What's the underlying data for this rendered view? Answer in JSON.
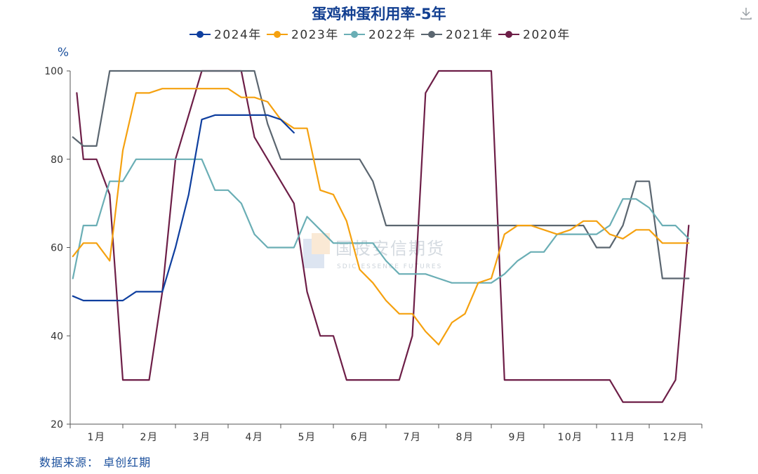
{
  "chart_data": {
    "type": "line",
    "title": "蛋鸡种蛋利用率-5年",
    "ylabel": "%",
    "ylim": [
      20,
      100
    ],
    "yticks": [
      20,
      40,
      60,
      80,
      100
    ],
    "xlim": [
      0,
      48
    ],
    "months": [
      "1月",
      "2月",
      "3月",
      "4月",
      "5月",
      "6月",
      "7月",
      "8月",
      "9月",
      "10月",
      "11月",
      "12月"
    ],
    "legend_position": "top-center",
    "grid": false,
    "watermark": {
      "cn": "国投安信期货",
      "en": "SDIC ESSENCE FUTURES"
    },
    "series": [
      {
        "name": "2024年",
        "color": "#0f3f9f",
        "x": [
          0.2,
          1,
          2,
          3,
          4,
          5,
          6,
          7,
          8,
          9,
          10,
          11,
          12,
          13,
          14,
          15,
          16,
          17
        ],
        "y": [
          49,
          48,
          48,
          48,
          48,
          50,
          50,
          50,
          60,
          72,
          89,
          90,
          90,
          90,
          90,
          90,
          89,
          86
        ]
      },
      {
        "name": "2023年",
        "color": "#f5a10f",
        "x": [
          0.2,
          1,
          2,
          3,
          4,
          5,
          6,
          7,
          8,
          9,
          10,
          11,
          12,
          13,
          14,
          15,
          16,
          17,
          18,
          19,
          20,
          21,
          22,
          23,
          24,
          25,
          26,
          27,
          28,
          29,
          30,
          31,
          32,
          33,
          34,
          35,
          36,
          37,
          38,
          39,
          40,
          41,
          42,
          43,
          44,
          45,
          46,
          47
        ],
        "y": [
          58,
          61,
          61,
          57,
          82,
          95,
          95,
          96,
          96,
          96,
          96,
          96,
          96,
          94,
          94,
          93,
          89,
          87,
          87,
          73,
          72,
          66,
          55,
          52,
          48,
          45,
          45,
          41,
          38,
          43,
          45,
          52,
          53,
          63,
          65,
          65,
          64,
          63,
          64,
          66,
          66,
          63,
          62,
          64,
          64,
          61,
          61,
          61
        ]
      },
      {
        "name": "2022年",
        "color": "#6aaeb5",
        "x": [
          0.2,
          1,
          2,
          3,
          4,
          5,
          6,
          7,
          8,
          9,
          10,
          11,
          12,
          13,
          14,
          15,
          16,
          17,
          18,
          19,
          20,
          21,
          22,
          23,
          24,
          25,
          26,
          27,
          28,
          29,
          30,
          31,
          32,
          33,
          34,
          35,
          36,
          37,
          38,
          39,
          40,
          41,
          42,
          43,
          44,
          45,
          46,
          47
        ],
        "y": [
          53,
          65,
          65,
          75,
          75,
          80,
          80,
          80,
          80,
          80,
          80,
          73,
          73,
          70,
          63,
          60,
          60,
          60,
          67,
          64,
          61,
          61,
          61,
          61,
          57,
          54,
          54,
          54,
          53,
          52,
          52,
          52,
          52,
          54,
          57,
          59,
          59,
          63,
          63,
          63,
          63,
          65,
          71,
          71,
          69,
          65,
          65,
          62
        ]
      },
      {
        "name": "2021年",
        "color": "#5b6670",
        "x": [
          0.2,
          1,
          2,
          3,
          4,
          5,
          6,
          7,
          8,
          9,
          10,
          11,
          12,
          13,
          14,
          15,
          16,
          17,
          18,
          19,
          20,
          21,
          22,
          23,
          24,
          25,
          26,
          27,
          28,
          29,
          30,
          31,
          32,
          33,
          34,
          35,
          36,
          37,
          38,
          39,
          40,
          41,
          42,
          43,
          44,
          45,
          46,
          47
        ],
        "y": [
          85,
          83,
          83,
          100,
          100,
          100,
          100,
          100,
          100,
          100,
          100,
          100,
          100,
          100,
          100,
          88,
          80,
          80,
          80,
          80,
          80,
          80,
          80,
          75,
          65,
          65,
          65,
          65,
          65,
          65,
          65,
          65,
          65,
          65,
          65,
          65,
          65,
          65,
          65,
          65,
          60,
          60,
          65,
          75,
          75,
          53,
          53,
          53
        ]
      },
      {
        "name": "2020年",
        "color": "#6d1e47",
        "x": [
          0.5,
          1,
          2,
          3,
          4,
          5,
          6,
          7,
          8,
          9,
          10,
          11,
          12,
          13,
          14,
          15,
          16,
          17,
          18,
          19,
          20,
          21,
          22,
          23,
          24,
          25,
          26,
          27,
          28,
          29,
          30,
          31,
          32,
          33,
          34,
          35,
          36,
          37,
          38,
          39,
          40,
          41,
          42,
          43,
          44,
          45,
          46,
          47
        ],
        "y": [
          95,
          80,
          80,
          72,
          30,
          30,
          30,
          50,
          80,
          90,
          100,
          100,
          100,
          100,
          85,
          80,
          75,
          70,
          50,
          40,
          40,
          30,
          30,
          30,
          30,
          30,
          40,
          95,
          100,
          100,
          100,
          100,
          100,
          30,
          30,
          30,
          30,
          30,
          30,
          30,
          30,
          30,
          25,
          25,
          25,
          25,
          30,
          65
        ]
      }
    ]
  },
  "source_text": "数据来源：  卓创红期",
  "download_icon": "download-icon"
}
